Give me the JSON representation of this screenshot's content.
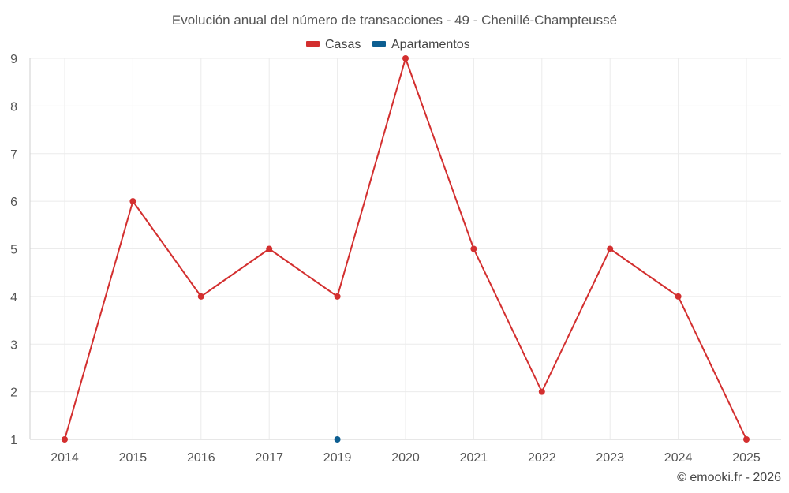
{
  "chart_data": {
    "type": "line",
    "title": "Evolución anual del número de transacciones - 49 - Chenillé-Champteussé",
    "categories": [
      "2014",
      "2015",
      "2016",
      "2017",
      "2019",
      "2020",
      "2021",
      "2022",
      "2023",
      "2024",
      "2025"
    ],
    "series": [
      {
        "name": "Casas",
        "color": "#d32f2f",
        "values": [
          1,
          6,
          4,
          5,
          4,
          9,
          5,
          2,
          5,
          4,
          1
        ]
      },
      {
        "name": "Apartamentos",
        "color": "#0d5e91",
        "values": [
          null,
          null,
          null,
          null,
          1,
          null,
          null,
          null,
          null,
          null,
          null
        ]
      }
    ],
    "ylim": [
      1,
      9
    ],
    "yticks": [
      "1",
      "2",
      "3",
      "4",
      "5",
      "6",
      "7",
      "8",
      "9"
    ],
    "grid": true,
    "legend_position": "top-center"
  },
  "credit": "© emooki.fr - 2026"
}
